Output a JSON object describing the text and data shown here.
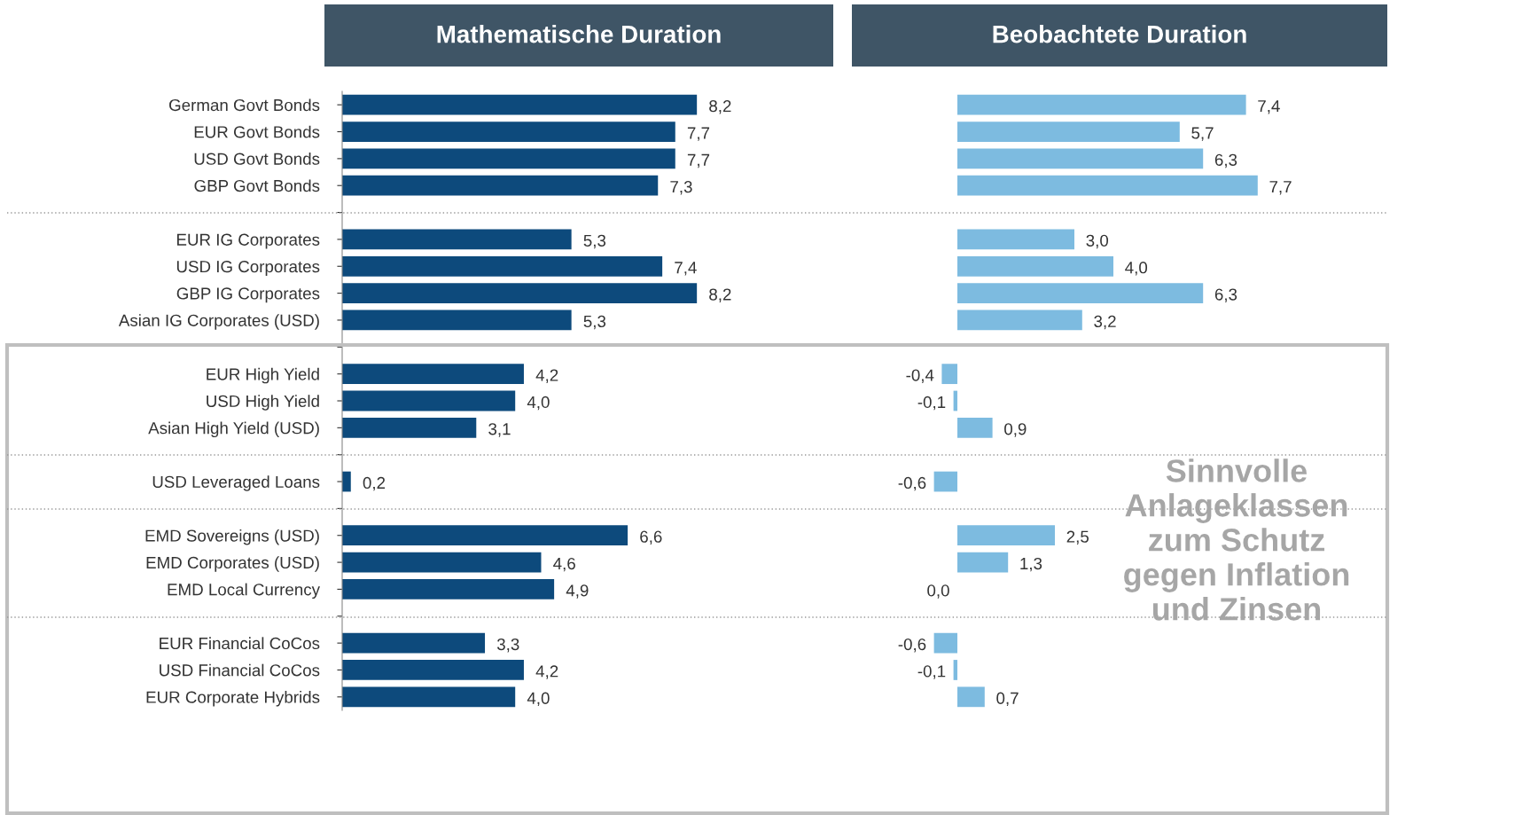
{
  "chart_data": [
    {
      "type": "bar",
      "orientation": "horizontal",
      "title": "Mathematische Duration",
      "categories": [
        "German Govt Bonds",
        "EUR Govt Bonds",
        "USD Govt Bonds",
        "GBP Govt Bonds",
        null,
        "EUR IG Corporates",
        "USD IG Corporates",
        "GBP IG Corporates",
        "Asian IG Corporates (USD)",
        null,
        "EUR High Yield",
        "USD High Yield",
        "Asian High Yield (USD)",
        null,
        "USD Leveraged Loans",
        null,
        "EMD Sovereigns (USD)",
        "EMD Corporates (USD)",
        "EMD Local Currency",
        null,
        "EUR Financial CoCos",
        "USD Financial CoCos",
        "EUR Corporate Hybrids"
      ],
      "values": [
        8.2,
        7.7,
        7.7,
        7.3,
        null,
        5.3,
        7.4,
        8.2,
        5.3,
        null,
        4.2,
        4.0,
        3.1,
        null,
        0.2,
        null,
        6.6,
        4.6,
        4.9,
        null,
        3.3,
        4.2,
        4.0
      ],
      "value_labels": [
        "8,2",
        "7,7",
        "7,7",
        "7,3",
        null,
        "5,3",
        "7,4",
        "8,2",
        "5,3",
        null,
        "4,2",
        "4,0",
        "3,1",
        null,
        "0,2",
        null,
        "6,6",
        "4,6",
        "4,9",
        null,
        "3,3",
        "4,2",
        "4,0"
      ],
      "color": "#0d4a7c",
      "tick_labels": "y",
      "grid": false,
      "legend": false
    },
    {
      "type": "bar",
      "orientation": "horizontal",
      "title": "Beobachtete Duration",
      "categories": [
        null,
        null,
        null,
        null,
        null,
        null,
        null,
        null,
        null,
        null,
        null,
        null,
        null,
        null,
        null,
        null,
        null,
        null,
        null,
        null,
        null,
        null,
        null
      ],
      "values": [
        7.4,
        5.7,
        6.3,
        7.7,
        null,
        3.0,
        4.0,
        6.3,
        3.2,
        null,
        -0.4,
        -0.1,
        0.9,
        null,
        -0.6,
        null,
        2.5,
        1.3,
        0.0,
        null,
        -0.6,
        -0.1,
        0.7
      ],
      "value_labels": [
        "7,4",
        "5,7",
        "6,3",
        "7,7",
        null,
        "3,0",
        "4,0",
        "6,3",
        "3,2",
        null,
        "-0,4",
        "-0,1",
        "0,9",
        null,
        "-0,6",
        null,
        "2,5",
        "1,3",
        "0,0",
        null,
        "-0,6",
        "-0,1",
        "0,7"
      ],
      "color": "#7dbbe0",
      "tick_labels": false,
      "grid": false,
      "legend": false,
      "annotations": [
        "Sinnvolle Anlageklassen zum Schutz gegen Inflation und Zinsen"
      ]
    }
  ]
}
